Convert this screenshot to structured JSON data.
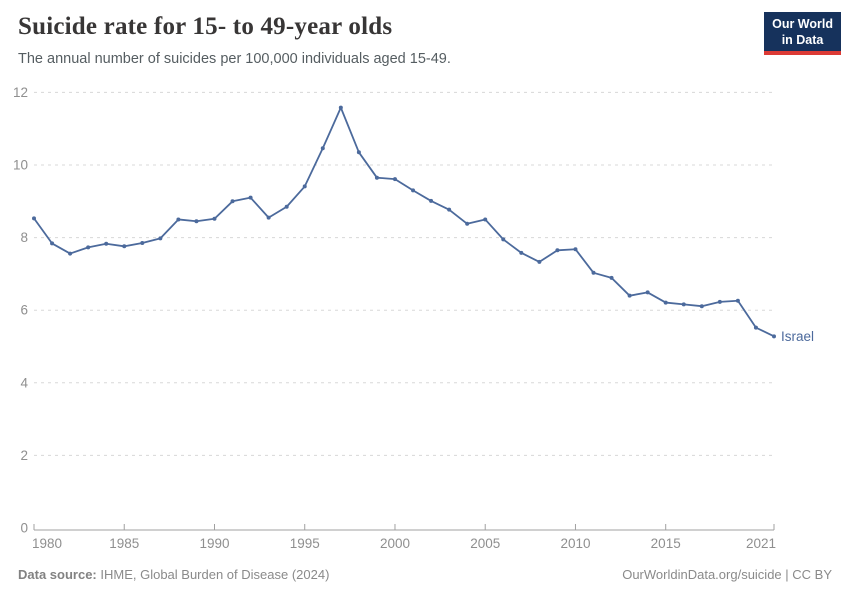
{
  "header": {
    "title": "Suicide rate for 15- to 49-year olds",
    "subtitle": "The annual number of suicides per 100,000 individuals aged 15-49.",
    "logo": {
      "line1": "Our World",
      "line2": "in Data"
    }
  },
  "footer": {
    "source_label": "Data source:",
    "source_text": " IHME, Global Burden of Disease (2024)",
    "credit": "OurWorldinData.org/suicide | CC BY"
  },
  "colors": {
    "series_blue": "#4C6A9C",
    "grid": "#d8d8d8",
    "axis": "#a0a0a0",
    "tick_label": "#8f8f8f",
    "logo_bg": "#16325c",
    "logo_stripe": "#dc3a35"
  },
  "chart_data": {
    "type": "line",
    "title": "Suicide rate for 15- to 49-year olds",
    "xlabel": "",
    "ylabel": "",
    "xlim": [
      1980,
      2021
    ],
    "ylim": [
      0,
      12
    ],
    "grid": "horizontal-dashed",
    "legend_position": "end-of-line-label",
    "x_ticks": [
      1980,
      1985,
      1990,
      1995,
      2000,
      2005,
      2010,
      2015,
      2021
    ],
    "y_ticks": [
      0,
      2,
      4,
      6,
      8,
      10,
      12
    ],
    "series": [
      {
        "name": "Israel",
        "color": "#4C6A9C",
        "x": [
          1980,
          1981,
          1982,
          1983,
          1984,
          1985,
          1986,
          1987,
          1988,
          1989,
          1990,
          1991,
          1992,
          1993,
          1994,
          1995,
          1996,
          1997,
          1998,
          1999,
          2000,
          2001,
          2002,
          2003,
          2004,
          2005,
          2006,
          2007,
          2008,
          2009,
          2010,
          2011,
          2012,
          2013,
          2014,
          2015,
          2016,
          2017,
          2018,
          2019,
          2020,
          2021
        ],
        "values": [
          8.53,
          7.84,
          7.56,
          7.73,
          7.83,
          7.76,
          7.85,
          7.98,
          8.5,
          8.45,
          8.52,
          9.0,
          9.1,
          8.55,
          8.85,
          9.41,
          10.46,
          11.58,
          10.35,
          9.65,
          9.61,
          9.3,
          9.01,
          8.77,
          8.38,
          8.5,
          7.95,
          7.58,
          7.33,
          7.65,
          7.68,
          7.03,
          6.89,
          6.4,
          6.49,
          6.21,
          6.16,
          6.11,
          6.23,
          6.26,
          5.52,
          5.28
        ]
      }
    ]
  }
}
